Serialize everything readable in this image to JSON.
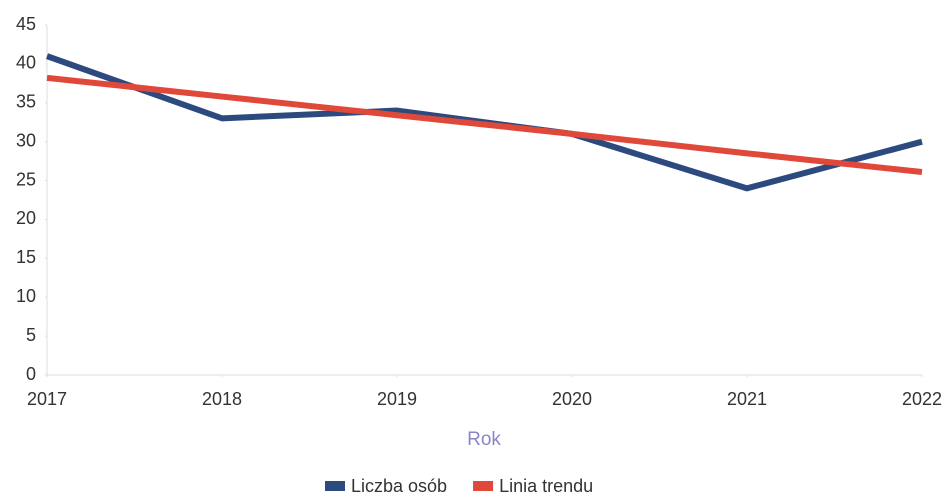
{
  "chart_data": {
    "type": "line",
    "x": [
      2017,
      2018,
      2019,
      2020,
      2021,
      2022
    ],
    "xlim": [
      2017,
      2022
    ],
    "xticks": [
      2017,
      2018,
      2019,
      2020,
      2021,
      2022
    ],
    "ylim": [
      0,
      45
    ],
    "yticks": [
      0,
      5,
      10,
      15,
      20,
      25,
      30,
      35,
      40,
      45
    ],
    "x_label": "Rok",
    "grid": false,
    "legend": "bottom",
    "series": [
      {
        "name": "Liczba osób",
        "color": "#2d4a7e",
        "values": [
          41,
          33,
          34,
          31,
          24,
          30
        ]
      },
      {
        "name": "Linia trendu",
        "color": "#e0493a",
        "values": [
          38.2,
          35.8,
          33.4,
          31.0,
          28.5,
          26.1
        ]
      }
    ]
  }
}
